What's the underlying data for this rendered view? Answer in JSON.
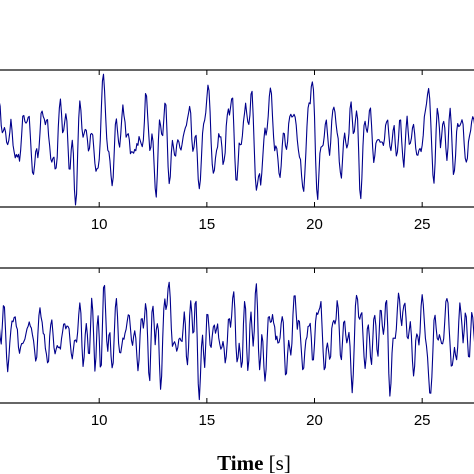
{
  "chart_data": [
    {
      "type": "line",
      "xlim": [
        5.3,
        27.5
      ],
      "ylim": [
        -1,
        1
      ],
      "xticks": [
        10,
        15,
        20,
        25
      ],
      "xtick_labels": [
        "10",
        "15",
        "20",
        "25"
      ],
      "xlabel_bold": "",
      "xlabel_rest": "",
      "grid": false,
      "color": "#00008b",
      "seed": 11,
      "series": [
        {
          "x_start": 5.3,
          "x_end": 27.5,
          "x_step": 0.05,
          "description": "noisy oscillating signal centered near 0, peaks near t=16.7 and t=25.3",
          "y": []
        }
      ],
      "features": [
        {
          "x": 16.7,
          "y": 0.78
        },
        {
          "x": 25.3,
          "y": 0.92
        },
        {
          "x": 8.9,
          "y": -0.72
        },
        {
          "x": 13.2,
          "y": -0.68
        },
        {
          "x": 17.3,
          "y": -0.7
        }
      ]
    },
    {
      "type": "line",
      "xlim": [
        5.3,
        27.5
      ],
      "ylim": [
        -1,
        1
      ],
      "xticks": [
        10,
        15,
        20,
        25
      ],
      "xtick_labels": [
        "10",
        "15",
        "20",
        "25"
      ],
      "xlabel_bold": "Time",
      "xlabel_rest": " [s]",
      "grid": false,
      "color": "#00008b",
      "seed": 29,
      "series": [
        {
          "x_start": 5.3,
          "x_end": 27.5,
          "x_step": 0.05,
          "description": "noisy oscillating signal centered near 0, peaks near t=13.2 and t=24.1",
          "y": []
        }
      ],
      "features": [
        {
          "x": 13.2,
          "y": 0.8
        },
        {
          "x": 24.1,
          "y": 0.85
        },
        {
          "x": 25.3,
          "y": -0.85
        },
        {
          "x": 14.9,
          "y": -0.65
        },
        {
          "x": 7.9,
          "y": -0.55
        }
      ]
    }
  ]
}
